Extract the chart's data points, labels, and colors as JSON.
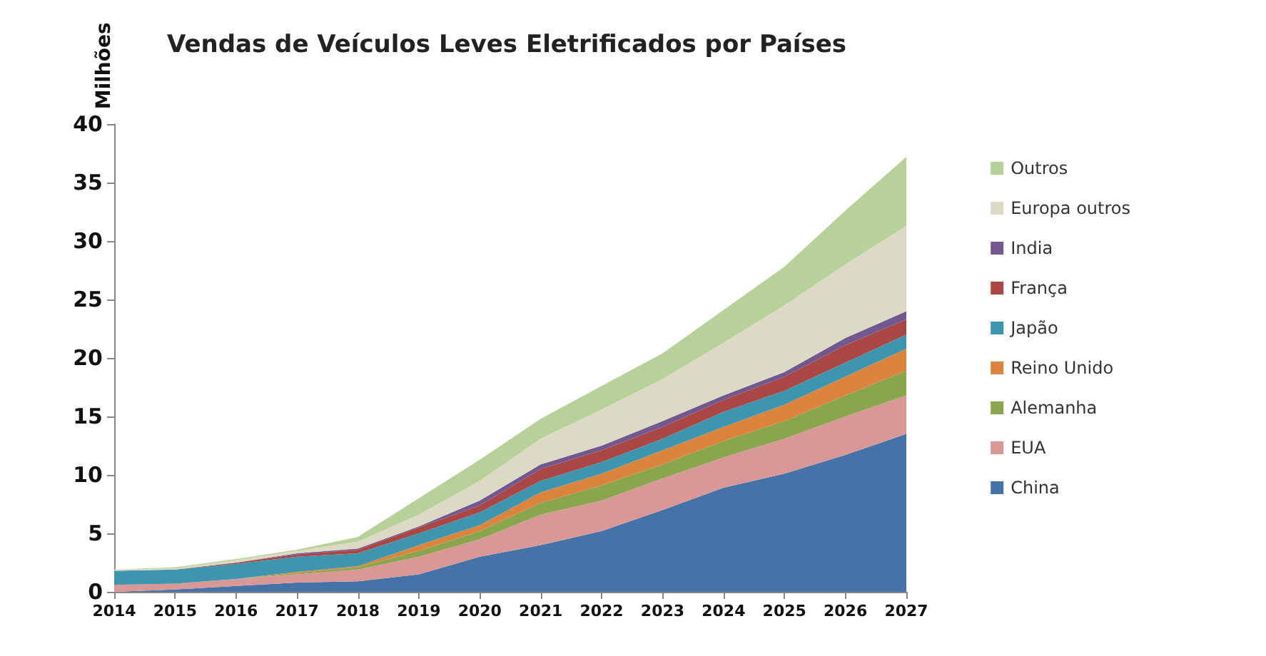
{
  "chart_data": {
    "type": "area",
    "title": "Vendas de Veículos Leves Eletrificados por Países",
    "ylabel": "Milhões",
    "categories": [
      "2014",
      "2015",
      "2016",
      "2017",
      "2018",
      "2019",
      "2020",
      "2021",
      "2022",
      "2023",
      "2024",
      "2025",
      "2026",
      "2027"
    ],
    "stacked": true,
    "ylim": [
      0,
      40
    ],
    "yticks": [
      0,
      5,
      10,
      15,
      20,
      25,
      30,
      35,
      40
    ],
    "grid": false,
    "legend": "right",
    "series": [
      {
        "name": "China",
        "color": "#4572a7",
        "values": [
          0,
          0.2,
          0.5,
          0.8,
          0.9,
          1.5,
          3.0,
          4.0,
          5.2,
          7.0,
          8.9,
          10.1,
          11.7,
          13.5
        ]
      },
      {
        "name": "EUA",
        "color": "#d99795",
        "values": [
          0.6,
          0.5,
          0.6,
          0.7,
          1.0,
          1.5,
          1.5,
          2.6,
          2.6,
          2.7,
          2.6,
          3.0,
          3.3,
          3.3
        ]
      },
      {
        "name": "Alemanha",
        "color": "#89a54e",
        "values": [
          0,
          0,
          0,
          0.1,
          0.2,
          0.5,
          0.7,
          1.0,
          1.3,
          1.2,
          1.4,
          1.5,
          1.8,
          2.1
        ]
      },
      {
        "name": "Reino Unido",
        "color": "#db843d",
        "values": [
          0,
          0,
          0,
          0.1,
          0.1,
          0.5,
          0.5,
          0.9,
          1.0,
          1.2,
          1.2,
          1.4,
          1.6,
          1.9
        ]
      },
      {
        "name": "Japão",
        "color": "#3d96ae",
        "values": [
          1.2,
          1.2,
          1.3,
          1.3,
          1.1,
          1.0,
          1.1,
          1.0,
          1.0,
          1.0,
          1.3,
          1.2,
          1.2,
          1.2
        ]
      },
      {
        "name": "França",
        "color": "#aa4643",
        "values": [
          0,
          0,
          0.1,
          0.2,
          0.3,
          0.5,
          0.6,
          1.0,
          1.0,
          1.0,
          1.0,
          1.2,
          1.5,
          1.3
        ]
      },
      {
        "name": "India",
        "color": "#71588f",
        "values": [
          0,
          0,
          0,
          0.1,
          0.1,
          0.1,
          0.4,
          0.4,
          0.4,
          0.5,
          0.4,
          0.4,
          0.6,
          0.7
        ]
      },
      {
        "name": "Europa outros",
        "color": "#dcd9c5",
        "values": [
          0.1,
          0.1,
          0.2,
          0.2,
          0.6,
          1.0,
          1.7,
          2.2,
          3.1,
          3.6,
          4.5,
          5.7,
          6.3,
          7.3
        ]
      },
      {
        "name": "Outros",
        "color": "#b8d19a",
        "values": [
          0,
          0.1,
          0.1,
          0.1,
          0.4,
          1.4,
          1.8,
          1.7,
          2.0,
          2.2,
          2.8,
          3.3,
          4.6,
          5.9
        ]
      }
    ]
  }
}
